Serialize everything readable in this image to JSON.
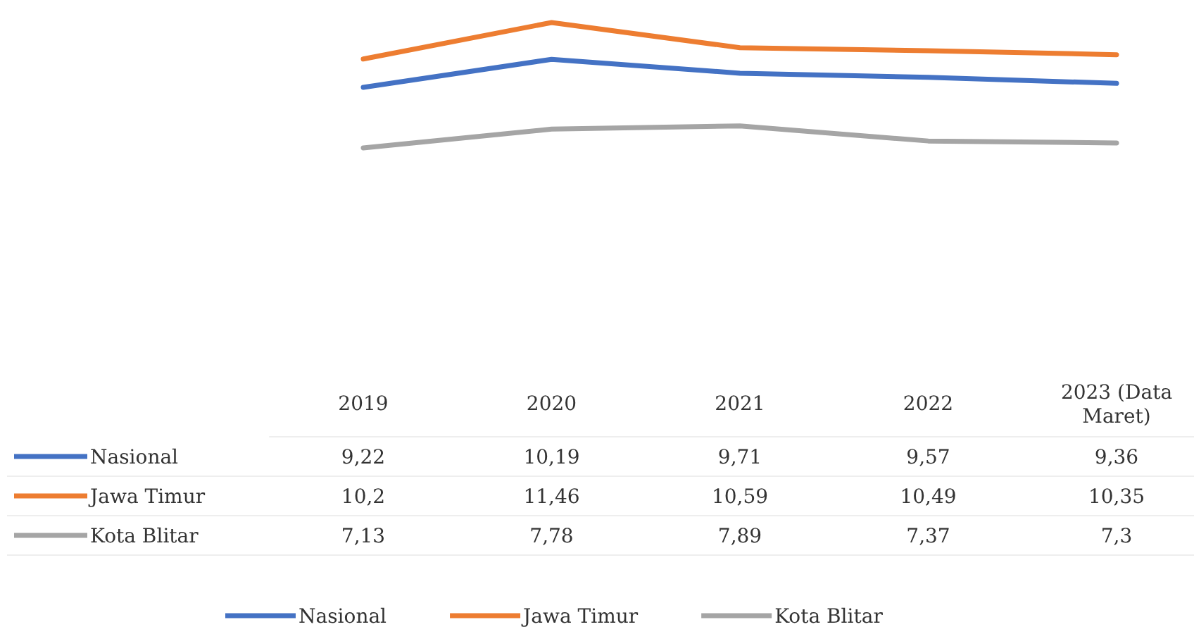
{
  "chart_data": {
    "type": "line",
    "categories": [
      "2019",
      "2020",
      "2021",
      "2022",
      "2023 (Data Maret)"
    ],
    "legend": "bottom",
    "grid": false,
    "marker": "none",
    "line_style": "solid",
    "series": [
      {
        "name": "Nasional",
        "color": "#4472c4",
        "values": [
          9.22,
          10.19,
          9.71,
          9.57,
          9.36
        ],
        "value_labels": [
          "9,22",
          "10,19",
          "9,71",
          "9,57",
          "9,36"
        ]
      },
      {
        "name": "Jawa Timur",
        "color": "#ed7d31",
        "values": [
          10.2,
          11.46,
          10.59,
          10.49,
          10.35
        ],
        "value_labels": [
          "10,2",
          "11,46",
          "10,59",
          "10,49",
          "10,35"
        ]
      },
      {
        "name": "Kota Blitar",
        "color": "#a5a5a5",
        "values": [
          7.13,
          7.78,
          7.89,
          7.37,
          7.3
        ],
        "value_labels": [
          "7,13",
          "7,78",
          "7,89",
          "7,37",
          "7,3"
        ]
      }
    ]
  }
}
